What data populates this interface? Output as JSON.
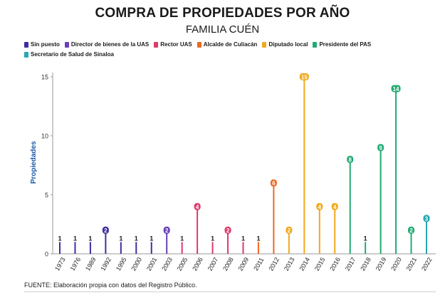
{
  "chart_data": {
    "type": "bar",
    "title": "COMPRA DE PROPIEDADES POR AÑO",
    "subtitle": "FAMILIA CUÉN",
    "ylabel": "Propiedades",
    "xlabel": "",
    "ylim": [
      0,
      15
    ],
    "yticks": [
      0,
      5,
      10,
      15
    ],
    "legend": [
      {
        "key": "sin_puesto",
        "label": "Sin puesto",
        "color": "#3d2fa0"
      },
      {
        "key": "director",
        "label": "Director de bienes de la UAS",
        "color": "#6a3fb8"
      },
      {
        "key": "rector",
        "label": "Rector UAS",
        "color": "#e03a6a"
      },
      {
        "key": "alcalde",
        "label": "Alcalde de Culiacán",
        "color": "#ea6a24"
      },
      {
        "key": "diputado",
        "label": "Diputado local",
        "color": "#f2a81d"
      },
      {
        "key": "presidente",
        "label": "Presidente del PAS",
        "color": "#22aa72"
      },
      {
        "key": "secretario",
        "label": "Secretario de Salud de Sinaloa",
        "color": "#25a7b4"
      }
    ],
    "points": [
      {
        "year": "1973",
        "value": 1,
        "role": "sin_puesto"
      },
      {
        "year": "1976",
        "value": 1,
        "role": "sin_puesto"
      },
      {
        "year": "1989",
        "value": 1,
        "role": "sin_puesto"
      },
      {
        "year": "1992",
        "value": 2,
        "role": "sin_puesto"
      },
      {
        "year": "1995",
        "value": 1,
        "role": "sin_puesto"
      },
      {
        "year": "2000",
        "value": 1,
        "role": "sin_puesto"
      },
      {
        "year": "2001",
        "value": 1,
        "role": "sin_puesto"
      },
      {
        "year": "2003",
        "value": 2,
        "role": "director"
      },
      {
        "year": "2005",
        "value": 1,
        "role": "rector"
      },
      {
        "year": "2006",
        "value": 4,
        "role": "rector"
      },
      {
        "year": "2007",
        "value": 1,
        "role": "rector"
      },
      {
        "year": "2008",
        "value": 2,
        "role": "rector"
      },
      {
        "year": "2009",
        "value": 1,
        "role": "rector"
      },
      {
        "year": "2011",
        "value": 1,
        "role": "alcalde"
      },
      {
        "year": "2012",
        "value": 6,
        "role": "alcalde"
      },
      {
        "year": "2013",
        "value": 2,
        "role": "diputado"
      },
      {
        "year": "2014",
        "value": 15,
        "role": "diputado"
      },
      {
        "year": "2015",
        "value": 4,
        "role": "diputado"
      },
      {
        "year": "2016",
        "value": 4,
        "role": "diputado"
      },
      {
        "year": "2017",
        "value": 8,
        "role": "presidente"
      },
      {
        "year": "2018",
        "value": 1,
        "role": "presidente"
      },
      {
        "year": "2019",
        "value": 9,
        "role": "presidente"
      },
      {
        "year": "2020",
        "value": 14,
        "role": "presidente"
      },
      {
        "year": "2021",
        "value": 2,
        "role": "presidente"
      },
      {
        "year": "2022",
        "value": 3,
        "role": "secretario"
      }
    ]
  },
  "footer": {
    "source": "FUENTE: Elaboración propia con datos del Registro Público."
  }
}
